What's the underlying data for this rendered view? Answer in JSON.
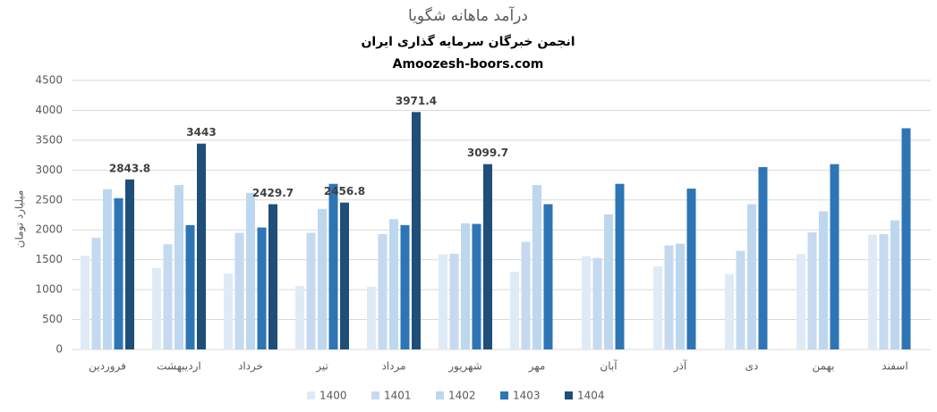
{
  "chart_data": {
    "type": "bar",
    "title": "درآمد ماهانه شگویا",
    "subtitle": "انجمن خبرگان سرمایه گذاری ایران",
    "source": "Amoozesh-boors.com",
    "y_label": "میلیارد تومان",
    "categories": [
      "فروردین",
      "اردیبهشت",
      "خرداد",
      "تیر",
      "مرداد",
      "شهریور",
      "مهر",
      "آبان",
      "آذر",
      "دی",
      "بهمن",
      "اسفند"
    ],
    "series": [
      {
        "name": "1400",
        "color": "#deebf7",
        "values": [
          1570,
          1360,
          1270,
          1060,
          1050,
          1590,
          1300,
          1560,
          1390,
          1260,
          1600,
          1920
        ]
      },
      {
        "name": "1401",
        "color": "#c5daf0",
        "values": [
          1870,
          1760,
          1950,
          1950,
          1930,
          1600,
          1800,
          1530,
          1740,
          1650,
          1960,
          1930
        ]
      },
      {
        "name": "1402",
        "color": "#bdd7ee",
        "values": [
          2680,
          2750,
          2620,
          2350,
          2180,
          2110,
          2750,
          2260,
          1770,
          2430,
          2310,
          2160
        ]
      },
      {
        "name": "1403",
        "color": "#2e75b6",
        "values": [
          2530,
          2080,
          2040,
          2770,
          2080,
          2100,
          2430,
          2770,
          2690,
          3050,
          3100,
          3700
        ]
      },
      {
        "name": "1404",
        "color": "#1f4e79",
        "values": [
          2843.8,
          3443,
          2429.7,
          2456.8,
          3971.4,
          3099.7,
          null,
          null,
          null,
          null,
          null,
          null
        ],
        "data_labels": true
      }
    ],
    "ylim": [
      0,
      4500
    ],
    "yticks": [
      0,
      500,
      1000,
      1500,
      2000,
      2500,
      3000,
      3500,
      4000,
      4500
    ],
    "grid": true,
    "legend": "bottom"
  }
}
